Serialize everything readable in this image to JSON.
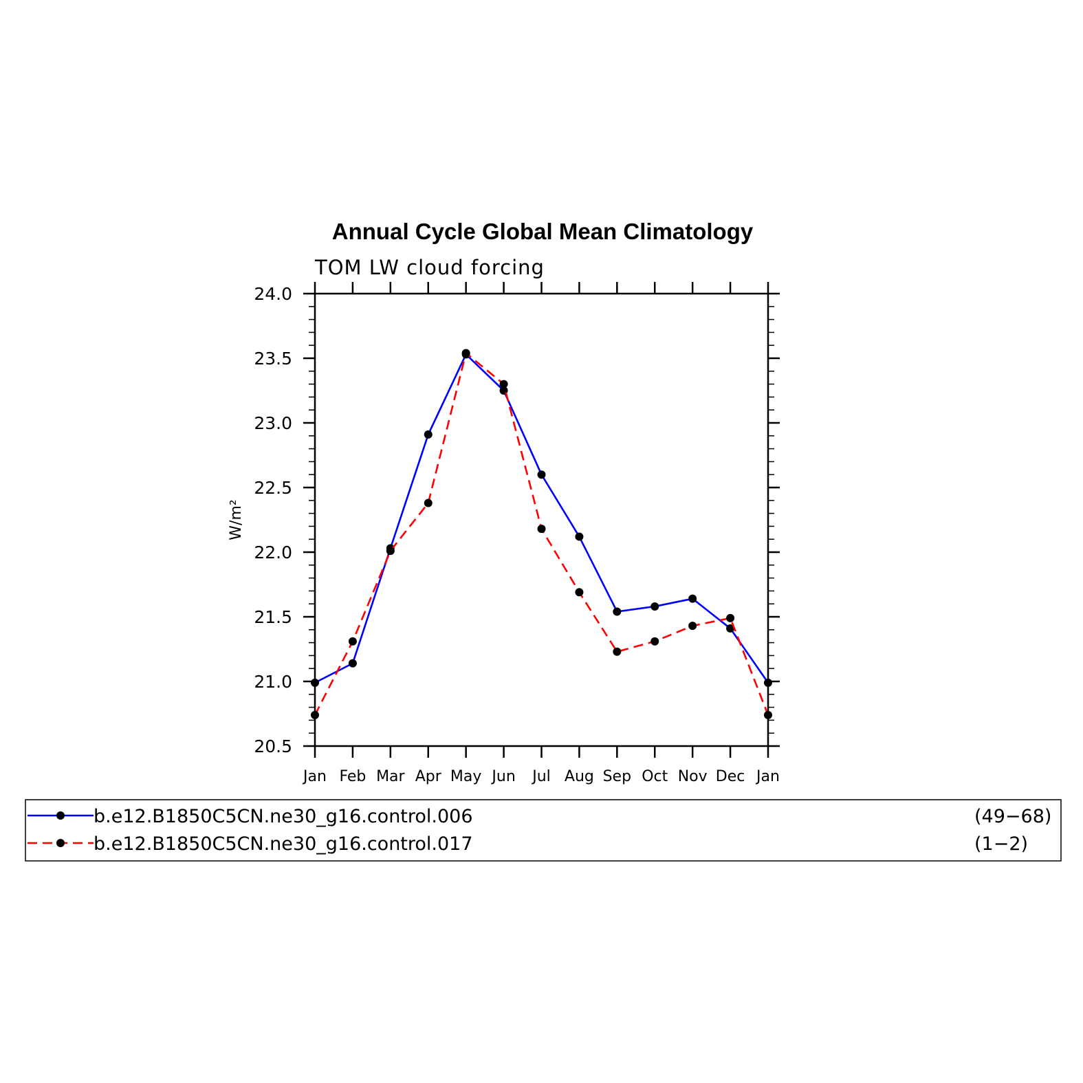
{
  "chart_data": {
    "type": "line",
    "title": "Annual Cycle Global Mean Climatology",
    "subtitle": "TOM LW cloud forcing",
    "ylabel": "W/m²",
    "xlabel": "",
    "ylim": [
      20.5,
      24.0
    ],
    "yticks": [
      "20.5",
      "21.0",
      "21.5",
      "22.0",
      "22.5",
      "23.0",
      "23.5",
      "24.0"
    ],
    "categories": [
      "Jan",
      "Feb",
      "Mar",
      "Apr",
      "May",
      "Jun",
      "Jul",
      "Aug",
      "Sep",
      "Oct",
      "Nov",
      "Dec",
      "Jan"
    ],
    "grid": false,
    "legend_position": "bottom",
    "series": [
      {
        "name": "b.e12.B1850C5CN.ne30_g16.control.006",
        "years": "(49−68)",
        "color": "#0000ff",
        "dash": "solid",
        "values": [
          20.99,
          21.14,
          22.03,
          22.91,
          23.53,
          23.25,
          22.6,
          22.12,
          21.54,
          21.58,
          21.64,
          21.41,
          20.99
        ]
      },
      {
        "name": "b.e12.B1850C5CN.ne30_g16.control.017",
        "years": "(1−2)",
        "color": "#ff0000",
        "dash": "dashed",
        "values": [
          20.74,
          21.31,
          22.01,
          22.38,
          23.54,
          23.3,
          22.18,
          21.69,
          21.23,
          21.31,
          21.43,
          21.49,
          20.74
        ]
      }
    ]
  }
}
